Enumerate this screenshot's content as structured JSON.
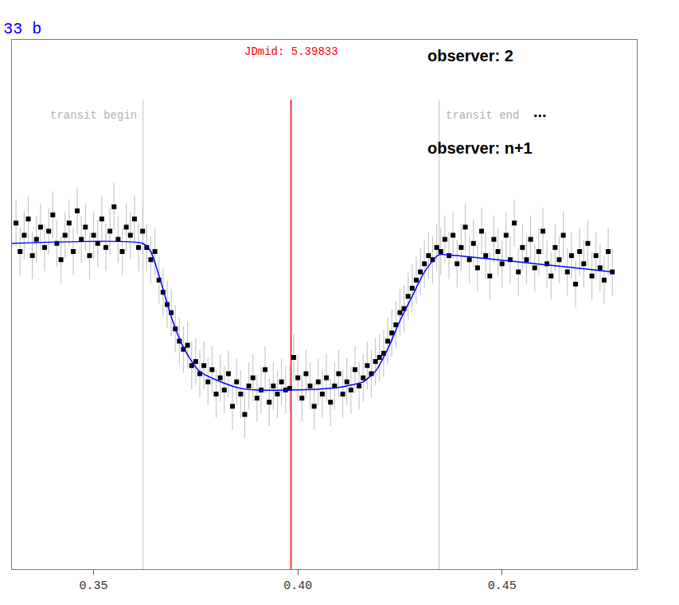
{
  "chart_data": {
    "type": "scatter",
    "title": "33 b",
    "xlim": [
      0.33,
      0.483
    ],
    "ylim": [
      0.96,
      1.025
    ],
    "xticks": [
      0.35,
      {
        "value": 0.4,
        "label": "0.40"
      },
      0.45
    ],
    "tick_labels": "x",
    "grid": false,
    "vlines": [
      {
        "x": 0.3621,
        "label": "transit begin",
        "color": "#c8c8c8"
      },
      {
        "x": 0.39833,
        "label": "JDmid: 5.39833",
        "color": "#ff0000"
      },
      {
        "x": 0.4346,
        "label": "transit end",
        "color": "#c8c8c8"
      }
    ],
    "annotations": [
      "observer: 2",
      "...",
      "observer: n+1"
    ],
    "series": [
      {
        "type": "scatter",
        "marker": "square",
        "color": "#000000",
        "error": 0.0029,
        "x": [
          0.331,
          0.332,
          0.333,
          0.334,
          0.335,
          0.336,
          0.337,
          0.338,
          0.339,
          0.34,
          0.341,
          0.342,
          0.343,
          0.344,
          0.345,
          0.346,
          0.347,
          0.348,
          0.349,
          0.35,
          0.351,
          0.352,
          0.353,
          0.354,
          0.355,
          0.356,
          0.357,
          0.358,
          0.359,
          0.36,
          0.361,
          0.362,
          0.363,
          0.364,
          0.365,
          0.366,
          0.367,
          0.368,
          0.369,
          0.37,
          0.371,
          0.372,
          0.373,
          0.374,
          0.375,
          0.376,
          0.377,
          0.378,
          0.379,
          0.38,
          0.381,
          0.382,
          0.383,
          0.384,
          0.385,
          0.386,
          0.387,
          0.388,
          0.389,
          0.39,
          0.391,
          0.392,
          0.393,
          0.394,
          0.395,
          0.396,
          0.397,
          0.398,
          0.399,
          0.4,
          0.401,
          0.402,
          0.403,
          0.404,
          0.405,
          0.406,
          0.407,
          0.408,
          0.409,
          0.41,
          0.411,
          0.412,
          0.413,
          0.414,
          0.415,
          0.416,
          0.417,
          0.418,
          0.419,
          0.42,
          0.421,
          0.422,
          0.423,
          0.424,
          0.425,
          0.426,
          0.427,
          0.428,
          0.429,
          0.43,
          0.431,
          0.432,
          0.433,
          0.434,
          0.435,
          0.436,
          0.437,
          0.438,
          0.439,
          0.44,
          0.441,
          0.442,
          0.443,
          0.444,
          0.445,
          0.446,
          0.447,
          0.448,
          0.449,
          0.45,
          0.451,
          0.452,
          0.453,
          0.454,
          0.455,
          0.456,
          0.457,
          0.458,
          0.459,
          0.46,
          0.461,
          0.462,
          0.463,
          0.464,
          0.465,
          0.466,
          0.467,
          0.468,
          0.469,
          0.47,
          0.471,
          0.472,
          0.473,
          0.474,
          0.475,
          0.476,
          0.477
        ],
        "values": [
          1.0025,
          0.999,
          1.001,
          1.003,
          0.9985,
          1.0005,
          1.002,
          0.9995,
          1.0015,
          1.0035,
          1.0,
          0.998,
          1.001,
          1.0025,
          0.999,
          1.004,
          1.0005,
          1.002,
          0.9985,
          1.001,
          1.0,
          1.003,
          0.9995,
          1.0015,
          1.0045,
          1.0005,
          0.999,
          1.002,
          1.001,
          1.003,
          0.9995,
          1.0015,
          0.9995,
          0.998,
          0.999,
          0.9955,
          0.994,
          0.9925,
          0.9915,
          0.9895,
          0.988,
          0.987,
          0.9875,
          0.985,
          0.9855,
          0.984,
          0.985,
          0.983,
          0.9845,
          0.9815,
          0.9835,
          0.982,
          0.984,
          0.98,
          0.983,
          0.9815,
          0.979,
          0.9825,
          0.9835,
          0.981,
          0.982,
          0.9845,
          0.9805,
          0.9825,
          0.9815,
          0.983,
          0.982,
          0.9822,
          0.986,
          0.9835,
          0.981,
          0.984,
          0.9825,
          0.98,
          0.983,
          0.9815,
          0.9835,
          0.9805,
          0.9825,
          0.984,
          0.9815,
          0.983,
          0.982,
          0.9845,
          0.9825,
          0.9835,
          0.985,
          0.984,
          0.9855,
          0.986,
          0.9865,
          0.988,
          0.989,
          0.99,
          0.9915,
          0.992,
          0.9935,
          0.9945,
          0.9955,
          0.9965,
          0.9975,
          0.9985,
          0.998,
          0.9995,
          0.999,
          1.0005,
          0.9985,
          1.001,
          0.9975,
          0.9995,
          1.002,
          0.998,
          1.0,
          0.997,
          1.0015,
          0.9985,
          0.996,
          1.0005,
          0.999,
          0.9975,
          1.001,
          0.998,
          1.0025,
          0.9965,
          0.9995,
          0.998,
          1.0005,
          0.997,
          0.999,
          1.0015,
          0.9975,
          0.996,
          0.9995,
          0.998,
          1.001,
          0.9965,
          0.9985,
          0.995,
          0.999,
          0.9975,
          1.0,
          0.996,
          0.9985,
          0.997,
          0.9955,
          0.999,
          0.9965
        ]
      },
      {
        "type": "line",
        "line_style": "solid",
        "color": "#0000ff",
        "x": [
          0.33,
          0.362,
          0.364,
          0.3661,
          0.369,
          0.372,
          0.3759,
          0.3817,
          0.386,
          0.39,
          0.398,
          0.405,
          0.41,
          0.413,
          0.416,
          0.419,
          0.422,
          0.425,
          0.428,
          0.431,
          0.4345,
          0.4375,
          0.477
        ],
        "values": [
          1.0,
          1.0,
          0.999,
          0.9959,
          0.991,
          0.9872,
          0.9843,
          0.9829,
          0.9822,
          0.982,
          0.982,
          0.9821,
          0.9823,
          0.9826,
          0.983,
          0.9843,
          0.987,
          0.9905,
          0.9935,
          0.9965,
          0.9986,
          0.99855,
          0.9965
        ]
      }
    ]
  }
}
